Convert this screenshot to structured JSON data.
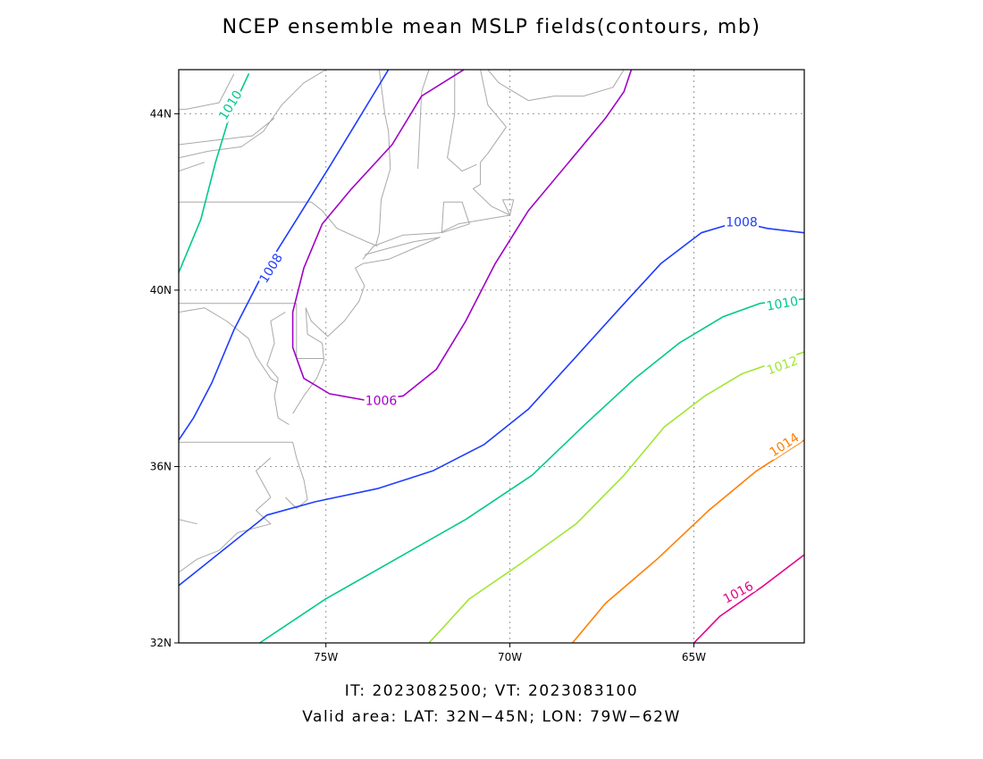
{
  "title": "NCEP ensemble mean MSLP fields(contours, mb)",
  "caption": {
    "line1": "IT: 2023082500; VT: 2023083100",
    "line2": "Valid area: LAT: 32N−45N; LON: 79W−62W"
  },
  "map": {
    "lat_range": [
      32,
      45
    ],
    "lon_range": [
      -79,
      -62
    ],
    "lat_ticks": [
      {
        "value": 32,
        "label": "32N"
      },
      {
        "value": 36,
        "label": "36N"
      },
      {
        "value": 40,
        "label": "40N"
      },
      {
        "value": 44,
        "label": "44N"
      }
    ],
    "lon_ticks": [
      {
        "value": -75,
        "label": "75W"
      },
      {
        "value": -70,
        "label": "70W"
      },
      {
        "value": -65,
        "label": "65W"
      }
    ],
    "grid": true,
    "grid_style": "dotted",
    "coastline_color": "#a9a9a9",
    "contours": [
      {
        "level": "1006",
        "color": "#a000c8",
        "points": [
          [
            -71.25,
            45.0
          ],
          [
            -72.4,
            44.4
          ],
          [
            -73.2,
            43.3
          ],
          [
            -74.3,
            42.3
          ],
          [
            -75.1,
            41.5
          ],
          [
            -75.6,
            40.5
          ],
          [
            -75.9,
            39.5
          ],
          [
            -75.9,
            38.7
          ],
          [
            -75.6,
            38.0
          ],
          [
            -74.9,
            37.65
          ],
          [
            -73.9,
            37.5
          ],
          [
            -72.9,
            37.6
          ],
          [
            -72.0,
            38.2
          ],
          [
            -71.2,
            39.3
          ],
          [
            -70.4,
            40.6
          ],
          [
            -69.5,
            41.8
          ],
          [
            -68.3,
            43.0
          ],
          [
            -67.4,
            43.9
          ],
          [
            -66.9,
            44.5
          ],
          [
            -66.7,
            45.0
          ]
        ],
        "labels": [
          {
            "lon": -73.5,
            "lat": 37.5,
            "angle": 0
          }
        ]
      },
      {
        "level": "1008",
        "color": "#1e3cff",
        "points": [
          [
            -73.3,
            45.0
          ],
          [
            -74.1,
            43.9
          ],
          [
            -74.9,
            42.8
          ],
          [
            -75.8,
            41.6
          ],
          [
            -76.7,
            40.4
          ],
          [
            -77.5,
            39.1
          ],
          [
            -78.1,
            37.9
          ],
          [
            -78.6,
            37.1
          ],
          [
            -79.0,
            36.6
          ]
        ],
        "labels": [
          {
            "lon": -76.5,
            "lat": 40.5,
            "angle": -58
          }
        ]
      },
      {
        "level": "1008",
        "color": "#1e3cff",
        "points": [
          [
            -79.0,
            33.3
          ],
          [
            -77.8,
            34.1
          ],
          [
            -76.6,
            34.9
          ],
          [
            -75.3,
            35.2
          ],
          [
            -73.6,
            35.5
          ],
          [
            -72.1,
            35.9
          ],
          [
            -70.7,
            36.5
          ],
          [
            -69.5,
            37.3
          ],
          [
            -68.3,
            38.4
          ],
          [
            -67.0,
            39.6
          ],
          [
            -65.9,
            40.6
          ],
          [
            -64.8,
            41.3
          ],
          [
            -63.8,
            41.55
          ],
          [
            -63.0,
            41.4
          ],
          [
            -62.0,
            41.3
          ]
        ],
        "labels": [
          {
            "lon": -63.7,
            "lat": 41.55,
            "angle": 0
          }
        ]
      },
      {
        "level": "1010",
        "color": "#00c88c",
        "points": [
          [
            -77.1,
            44.9
          ],
          [
            -77.6,
            44.0
          ],
          [
            -78.0,
            42.9
          ],
          [
            -78.4,
            41.6
          ],
          [
            -79.0,
            40.4
          ]
        ],
        "labels": [
          {
            "lon": -77.6,
            "lat": 44.2,
            "angle": -58
          }
        ]
      },
      {
        "level": "1010",
        "color": "#00c88c",
        "points": [
          [
            -76.8,
            32.0
          ],
          [
            -75.0,
            33.0
          ],
          [
            -73.1,
            33.9
          ],
          [
            -71.2,
            34.8
          ],
          [
            -69.4,
            35.8
          ],
          [
            -67.9,
            37.0
          ],
          [
            -66.6,
            38.0
          ],
          [
            -65.4,
            38.8
          ],
          [
            -64.2,
            39.4
          ],
          [
            -63.2,
            39.7
          ],
          [
            -62.0,
            39.8
          ]
        ],
        "labels": [
          {
            "lon": -62.6,
            "lat": 39.7,
            "angle": -10
          }
        ]
      },
      {
        "level": "1012",
        "color": "#a0e632",
        "points": [
          [
            -72.2,
            32.0
          ],
          [
            -71.1,
            33.0
          ],
          [
            -69.7,
            33.8
          ],
          [
            -68.2,
            34.7
          ],
          [
            -66.9,
            35.8
          ],
          [
            -65.8,
            36.9
          ],
          [
            -64.7,
            37.6
          ],
          [
            -63.7,
            38.1
          ],
          [
            -62.0,
            38.6
          ]
        ],
        "labels": [
          {
            "lon": -62.6,
            "lat": 38.3,
            "angle": -20
          }
        ]
      },
      {
        "level": "1014",
        "color": "#ff7f00",
        "points": [
          [
            -68.3,
            32.0
          ],
          [
            -67.4,
            32.9
          ],
          [
            -66.0,
            33.9
          ],
          [
            -64.6,
            35.0
          ],
          [
            -63.3,
            35.9
          ],
          [
            -62.0,
            36.6
          ]
        ],
        "labels": [
          {
            "lon": -62.55,
            "lat": 36.5,
            "angle": -33
          }
        ]
      },
      {
        "level": "1016",
        "color": "#e6008c",
        "points": [
          [
            -65.0,
            32.0
          ],
          [
            -64.3,
            32.6
          ],
          [
            -63.1,
            33.3
          ],
          [
            -62.0,
            34.0
          ]
        ],
        "labels": [
          {
            "lon": -63.8,
            "lat": 33.15,
            "angle": -28
          }
        ]
      }
    ],
    "coastlines": [
      [
        [
          -79.0,
          43.0
        ],
        [
          -78.2,
          43.15
        ],
        [
          -77.3,
          43.25
        ],
        [
          -76.7,
          43.6
        ],
        [
          -76.2,
          44.2
        ],
        [
          -75.6,
          44.7
        ],
        [
          -75.0,
          45.0
        ]
      ],
      [
        [
          -79.0,
          43.3
        ],
        [
          -78.0,
          43.4
        ],
        [
          -77.0,
          43.5
        ],
        [
          -76.4,
          43.9
        ]
      ],
      [
        [
          -79.0,
          42.7
        ],
        [
          -78.3,
          42.9
        ]
      ],
      [
        [
          -77.5,
          44.9
        ],
        [
          -77.9,
          44.25
        ],
        [
          -78.8,
          44.1
        ],
        [
          -79.0,
          44.1
        ]
      ],
      [
        [
          -79.0,
          42.0
        ],
        [
          -75.4,
          42.0
        ],
        [
          -75.1,
          41.8
        ],
        [
          -74.7,
          41.4
        ],
        [
          -73.9,
          41.1
        ],
        [
          -73.6,
          41.0
        ]
      ],
      [
        [
          -73.55,
          45.0
        ],
        [
          -73.4,
          44.0
        ],
        [
          -73.3,
          43.6
        ],
        [
          -73.25,
          42.75
        ],
        [
          -73.5,
          42.05
        ],
        [
          -73.55,
          41.3
        ],
        [
          -73.65,
          41.0
        ]
      ],
      [
        [
          -71.5,
          45.0
        ],
        [
          -71.5,
          44.0
        ],
        [
          -71.7,
          43.0
        ],
        [
          -71.3,
          42.7
        ],
        [
          -70.9,
          42.85
        ]
      ],
      [
        [
          -72.5,
          42.75
        ],
        [
          -72.4,
          44.5
        ],
        [
          -72.2,
          45.0
        ]
      ],
      [
        [
          -71.8,
          42.0
        ],
        [
          -71.3,
          42.0
        ],
        [
          -71.1,
          41.5
        ],
        [
          -71.85,
          41.3
        ],
        [
          -71.8,
          42.0
        ]
      ],
      [
        [
          -70.8,
          45.0
        ],
        [
          -70.6,
          44.2
        ],
        [
          -70.1,
          43.7
        ],
        [
          -70.6,
          43.1
        ],
        [
          -70.8,
          42.9
        ],
        [
          -70.8,
          42.4
        ],
        [
          -71.0,
          42.3
        ],
        [
          -70.5,
          41.9
        ],
        [
          -70.0,
          41.7
        ],
        [
          -69.9,
          42.05
        ],
        [
          -70.2,
          42.05
        ],
        [
          -70.0,
          41.7
        ],
        [
          -70.7,
          41.6
        ],
        [
          -71.4,
          41.5
        ],
        [
          -71.9,
          41.3
        ],
        [
          -72.9,
          41.25
        ],
        [
          -73.7,
          41.0
        ],
        [
          -74.0,
          40.7
        ]
      ],
      [
        [
          -73.95,
          40.8
        ],
        [
          -73.3,
          40.95
        ],
        [
          -72.6,
          41.1
        ],
        [
          -71.9,
          41.2
        ],
        [
          -72.6,
          40.95
        ],
        [
          -73.3,
          40.7
        ],
        [
          -74.0,
          40.6
        ]
      ],
      [
        [
          -70.6,
          45.0
        ],
        [
          -70.3,
          44.7
        ],
        [
          -69.5,
          44.3
        ],
        [
          -68.8,
          44.4
        ],
        [
          -68.0,
          44.4
        ],
        [
          -67.2,
          44.6
        ],
        [
          -66.9,
          45.0
        ]
      ],
      [
        [
          -74.0,
          40.6
        ],
        [
          -74.2,
          40.5
        ],
        [
          -73.95,
          40.1
        ],
        [
          -74.1,
          39.75
        ],
        [
          -74.5,
          39.3
        ],
        [
          -74.95,
          38.95
        ],
        [
          -75.4,
          39.3
        ],
        [
          -75.55,
          39.6
        ]
      ],
      [
        [
          -75.55,
          39.6
        ],
        [
          -75.5,
          39.0
        ],
        [
          -75.1,
          38.8
        ],
        [
          -75.05,
          38.4
        ],
        [
          -75.25,
          38.0
        ],
        [
          -75.6,
          37.6
        ],
        [
          -75.9,
          37.2
        ]
      ],
      [
        [
          -79.0,
          39.7
        ],
        [
          -75.8,
          39.7
        ],
        [
          -75.8,
          38.45
        ],
        [
          -75.05,
          38.45
        ]
      ],
      [
        [
          -79.0,
          39.5
        ],
        [
          -78.3,
          39.6
        ],
        [
          -77.7,
          39.3
        ],
        [
          -77.1,
          38.9
        ],
        [
          -76.9,
          38.5
        ],
        [
          -76.5,
          38.0
        ],
        [
          -76.3,
          37.9
        ]
      ],
      [
        [
          -76.1,
          39.5
        ],
        [
          -76.5,
          39.3
        ],
        [
          -76.4,
          38.8
        ],
        [
          -76.6,
          38.3
        ],
        [
          -76.3,
          38.0
        ],
        [
          -76.4,
          37.6
        ],
        [
          -76.3,
          37.1
        ],
        [
          -76.0,
          36.95
        ]
      ],
      [
        [
          -79.0,
          36.55
        ],
        [
          -75.9,
          36.55
        ]
      ],
      [
        [
          -75.9,
          36.55
        ],
        [
          -75.8,
          36.2
        ],
        [
          -75.6,
          35.7
        ],
        [
          -75.5,
          35.25
        ],
        [
          -75.8,
          35.05
        ],
        [
          -76.1,
          35.3
        ]
      ],
      [
        [
          -76.5,
          36.2
        ],
        [
          -76.9,
          35.9
        ],
        [
          -76.5,
          35.3
        ],
        [
          -76.9,
          35.0
        ],
        [
          -76.5,
          34.7
        ],
        [
          -77.4,
          34.5
        ],
        [
          -77.9,
          34.1
        ],
        [
          -78.5,
          33.9
        ],
        [
          -79.0,
          33.6
        ]
      ],
      [
        [
          -79.0,
          34.8
        ],
        [
          -78.5,
          34.7
        ]
      ]
    ]
  }
}
